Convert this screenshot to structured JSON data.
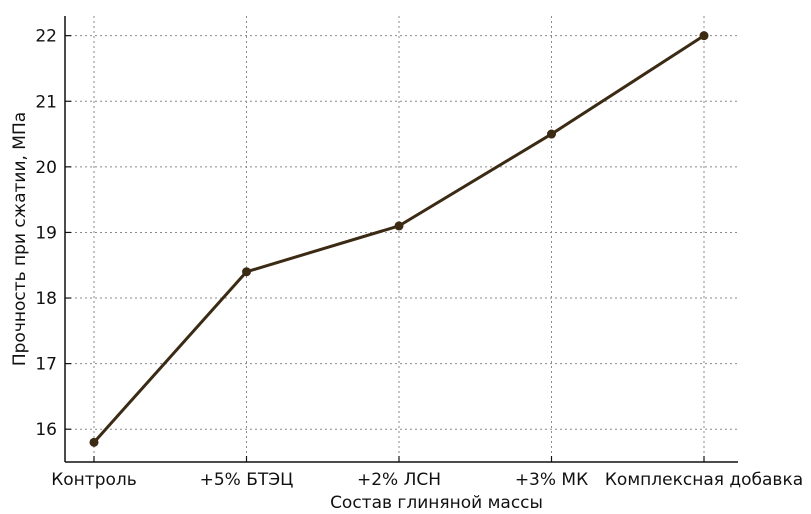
{
  "chart_data": {
    "type": "line",
    "title": "",
    "xlabel": "Состав глиняной массы",
    "ylabel": "Прочность при сжатии, МПа",
    "categories": [
      "Контроль",
      "+5% БТЭЦ",
      "+2% ЛСН",
      "+3% МК",
      "Комплексная добавка"
    ],
    "series": [
      {
        "values": [
          15.8,
          18.4,
          19.1,
          20.5,
          22.0
        ]
      }
    ],
    "ylim": [
      15.5,
      22.3
    ],
    "yticks": [
      16,
      17,
      18,
      19,
      20,
      21,
      22
    ],
    "grid": true,
    "line_color": "#3b2a14",
    "marker": "circle",
    "legend": "none"
  }
}
